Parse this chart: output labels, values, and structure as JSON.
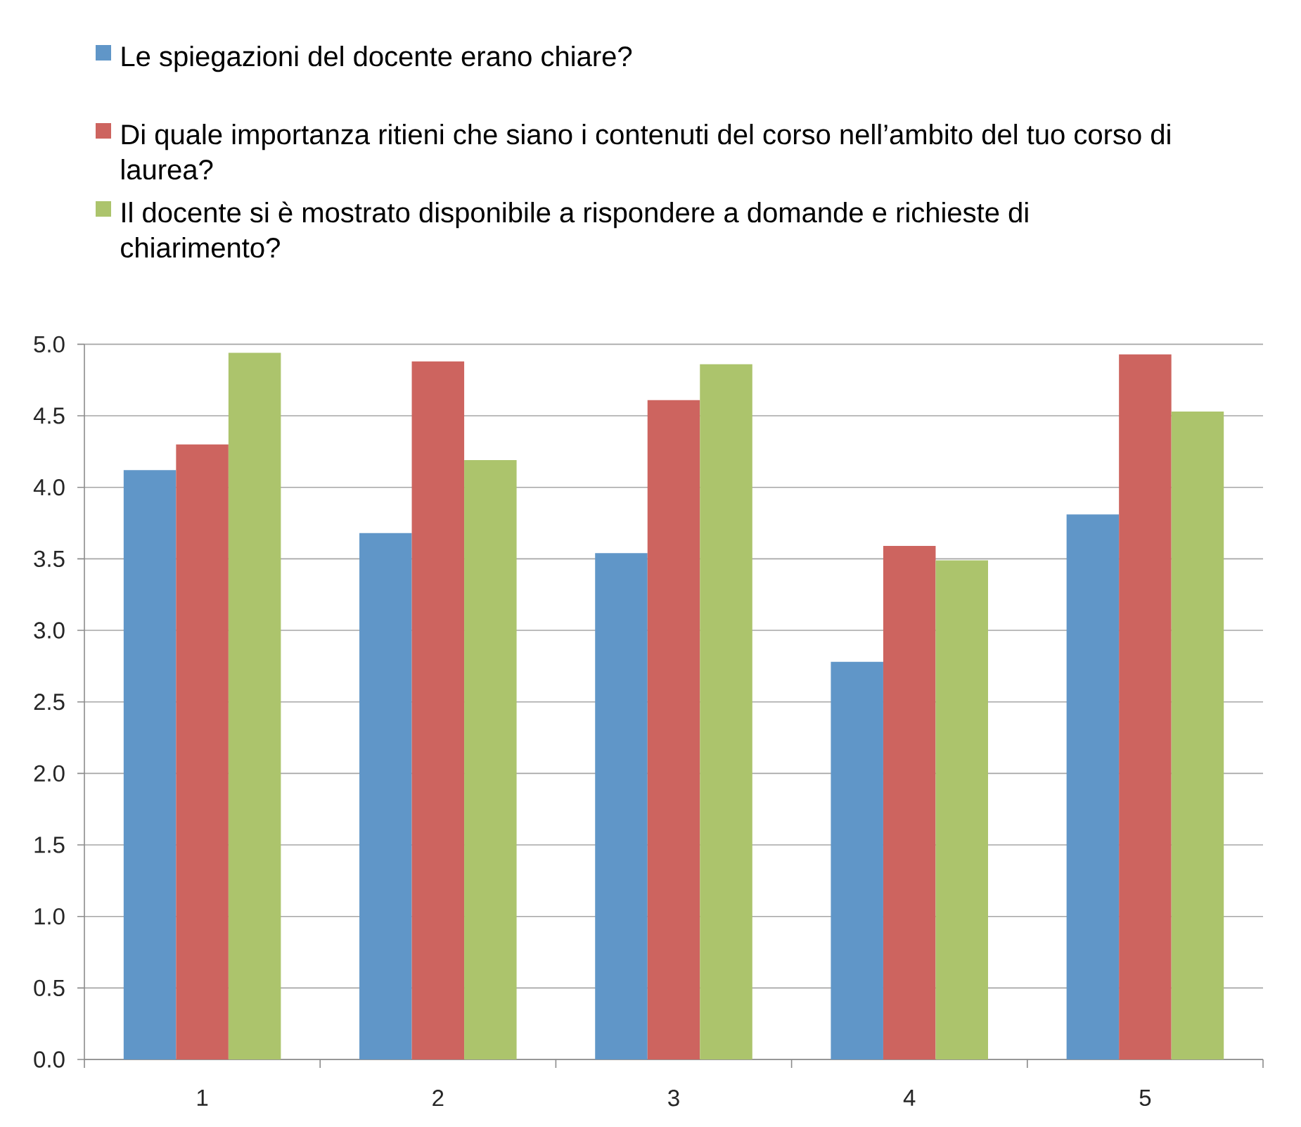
{
  "chart_data": {
    "type": "bar",
    "categories": [
      "1",
      "2",
      "3",
      "4",
      "5"
    ],
    "series": [
      {
        "name": "Le spiegazioni del docente erano chiare?",
        "color": "#6096c8",
        "values": [
          4.12,
          3.68,
          3.54,
          2.78,
          3.81
        ]
      },
      {
        "name": "Di quale importanza ritieni che siano i contenuti del corso nell’ambito del tuo corso di laurea?",
        "color": "#cd645f",
        "values": [
          4.3,
          4.88,
          4.61,
          3.59,
          4.93
        ]
      },
      {
        "name": "Il docente si è mostrato disponibile a rispondere a domande e richieste di chiarimento?",
        "color": "#acc46c",
        "values": [
          4.94,
          4.19,
          4.86,
          3.49,
          4.53
        ]
      }
    ],
    "ylim": [
      0,
      5
    ],
    "yticks": [
      {
        "value": 0,
        "label": "0.0"
      },
      {
        "value": 0.5,
        "label": "0.5"
      },
      {
        "value": 1,
        "label": "1.0"
      },
      {
        "value": 1.5,
        "label": "1.5"
      },
      {
        "value": 2,
        "label": "2.0"
      },
      {
        "value": 2.5,
        "label": "2.5"
      },
      {
        "value": 3,
        "label": "3.0"
      },
      {
        "value": 3.5,
        "label": "3.5"
      },
      {
        "value": 4,
        "label": "4.0"
      },
      {
        "value": 4.5,
        "label": "4.5"
      },
      {
        "value": 5,
        "label": "5.0"
      }
    ],
    "grid": "y",
    "legend": "top"
  }
}
